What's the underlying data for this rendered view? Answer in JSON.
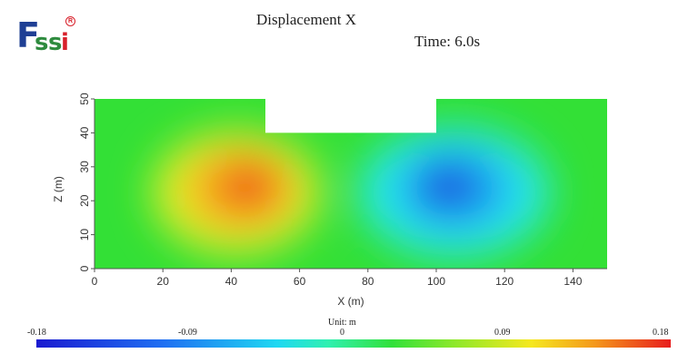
{
  "header": {
    "logo_text": "Fssi",
    "title": "Displacement X",
    "time_label": "Time: 6.0s"
  },
  "chart_data": {
    "type": "heatmap",
    "quantity": "Displacement X",
    "xlabel": "X (m)",
    "ylabel": "Z (m)",
    "xlim": [
      0,
      150
    ],
    "ylim": [
      0,
      50
    ],
    "x_ticks": [
      "0",
      "20",
      "40",
      "60",
      "80",
      "100",
      "120",
      "140"
    ],
    "y_ticks": [
      "0",
      "10",
      "20",
      "30",
      "40",
      "50"
    ],
    "domain_outline": [
      [
        0,
        0
      ],
      [
        150,
        0
      ],
      [
        150,
        50
      ],
      [
        100,
        50
      ],
      [
        100,
        40
      ],
      [
        50,
        40
      ],
      [
        50,
        50
      ],
      [
        0,
        50
      ]
    ],
    "extrema": [
      {
        "x": 45,
        "z": 25,
        "value": 0.16
      },
      {
        "x": 105,
        "z": 25,
        "value": -0.15
      }
    ],
    "colorbar": {
      "min": -0.18,
      "max": 0.18,
      "tick_labels": [
        "-0.18",
        "-0.09",
        "0",
        "0.09",
        "0.18"
      ],
      "unit_label": "Unit:  m"
    }
  }
}
